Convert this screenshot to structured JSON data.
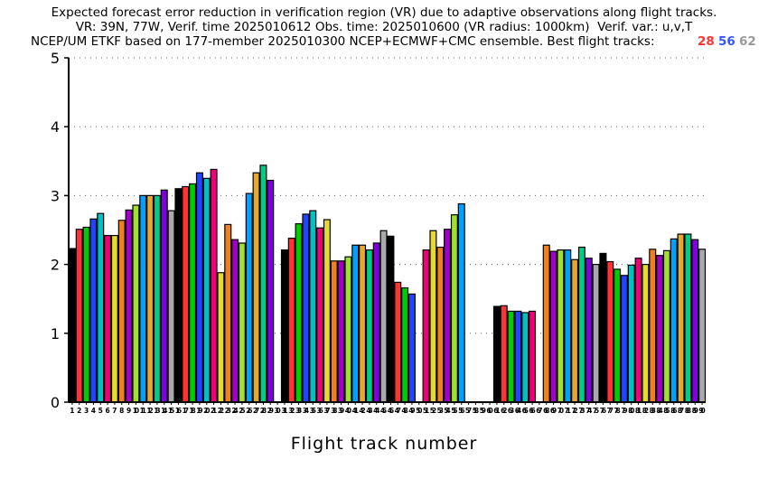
{
  "chart_data": {
    "type": "bar",
    "title": [
      "Expected forecast error reduction in verification region (VR) due to adaptive observations along flight tracks.",
      "VR: 39N, 77W, Verif. time 2025010612 Obs. time: 2025010600 (VR radius: 1000km)  Verif. var.: u,v,T",
      "NCEP/UM ETKF based on 177-member 2025010300 NCEP+ECMWF+CMC ensemble. Best flight tracks:"
    ],
    "best_tracks": [
      {
        "label": "28",
        "color": "#ff3333"
      },
      {
        "label": "56",
        "color": "#3355ff"
      },
      {
        "label": "62",
        "color": "#999999"
      }
    ],
    "xlabel": "Flight track number",
    "ylabel": "",
    "ylim": [
      0,
      5
    ],
    "yticks": [
      "0",
      "1",
      "2",
      "3",
      "4",
      "5"
    ],
    "grid": "dotted horizontal",
    "categories": [
      "1",
      "2",
      "3",
      "4",
      "5",
      "6",
      "7",
      "8",
      "9",
      "10",
      "11",
      "12",
      "13",
      "14",
      "15",
      "16",
      "17",
      "18",
      "19",
      "20",
      "21",
      "22",
      "23",
      "24",
      "25",
      "26",
      "27",
      "28",
      "29",
      "30",
      "31",
      "32",
      "33",
      "34",
      "35",
      "36",
      "37",
      "38",
      "39",
      "40",
      "41",
      "42",
      "43",
      "44",
      "45",
      "46",
      "47",
      "48",
      "49",
      "50",
      "51",
      "52",
      "53",
      "54",
      "55",
      "56",
      "57",
      "58",
      "59",
      "60",
      "61",
      "62",
      "63",
      "64",
      "65",
      "66",
      "67",
      "68",
      "69",
      "70",
      "71",
      "72",
      "73",
      "74",
      "75",
      "76",
      "77",
      "78",
      "79",
      "80",
      "81",
      "82",
      "83",
      "84",
      "85",
      "86",
      "87",
      "88",
      "89",
      "90"
    ],
    "values": [
      2.23,
      2.51,
      2.54,
      2.66,
      2.74,
      2.42,
      2.42,
      2.64,
      2.79,
      2.86,
      3.0,
      3.0,
      3.0,
      3.08,
      2.78,
      3.1,
      3.13,
      3.17,
      3.33,
      3.25,
      3.38,
      1.88,
      2.58,
      2.36,
      2.31,
      3.03,
      3.33,
      3.44,
      3.22,
      null,
      2.21,
      2.38,
      2.59,
      2.73,
      2.78,
      2.53,
      2.65,
      2.05,
      2.05,
      2.11,
      2.28,
      2.28,
      2.21,
      2.31,
      2.49,
      2.41,
      1.74,
      1.66,
      1.57,
      null,
      2.21,
      2.49,
      2.25,
      2.51,
      2.72,
      2.88,
      null,
      null,
      null,
      null,
      1.39,
      1.4,
      1.32,
      1.32,
      1.3,
      1.32,
      null,
      2.28,
      2.19,
      2.21,
      2.21,
      2.07,
      2.25,
      2.09,
      2.0,
      2.16,
      2.04,
      1.93,
      1.84,
      1.99,
      2.09,
      2.0,
      2.22,
      2.13,
      2.2,
      2.37,
      2.44,
      2.44,
      2.36,
      2.22
    ],
    "color_cycle": [
      "#000000",
      "#ff3333",
      "#00cc00",
      "#2244ff",
      "#00c0c0",
      "#ee0077",
      "#e6d930",
      "#ee8020",
      "#a000c8",
      "#a0e030",
      "#00a0ff",
      "#e6a830",
      "#00cc88",
      "#8000dd",
      "#aaaaaa"
    ]
  }
}
